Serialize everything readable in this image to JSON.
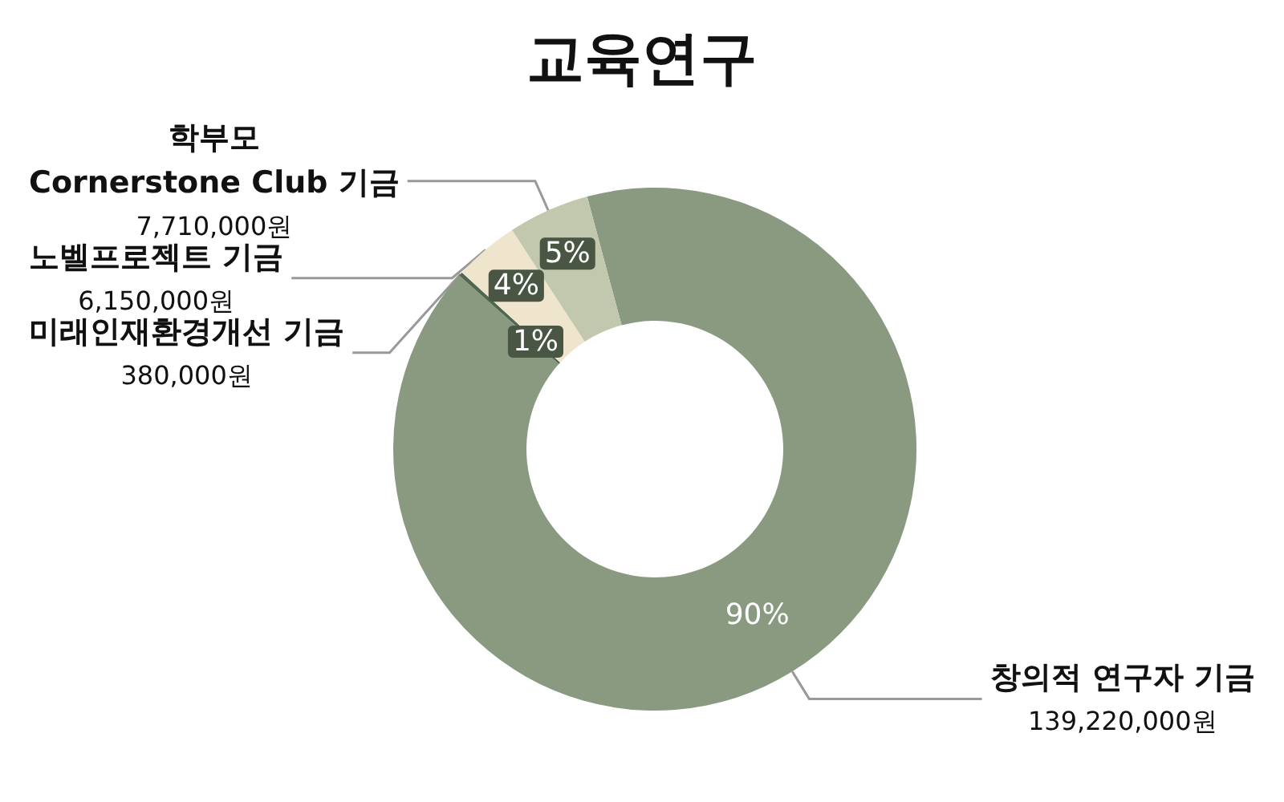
{
  "chart_data": {
    "type": "donut",
    "title": "교육연구",
    "categories": [
      "창의적 연구자 기금",
      "미래인재환경개선 기금",
      "노벨프로젝트 기금",
      "학부모\nCornerstone Club 기금"
    ],
    "values": [
      139220000,
      380000,
      6150000,
      7710000
    ],
    "value_labels": [
      "139,220,000원",
      "380,000원",
      "6,150,000원",
      "7,710,000원"
    ],
    "colors": [
      "#8a9a80",
      "#4f6650",
      "#efe5cc",
      "#c2c8ad"
    ],
    "annotations": [
      "90%",
      "1%",
      "4%",
      "5%"
    ],
    "legend": false
  }
}
